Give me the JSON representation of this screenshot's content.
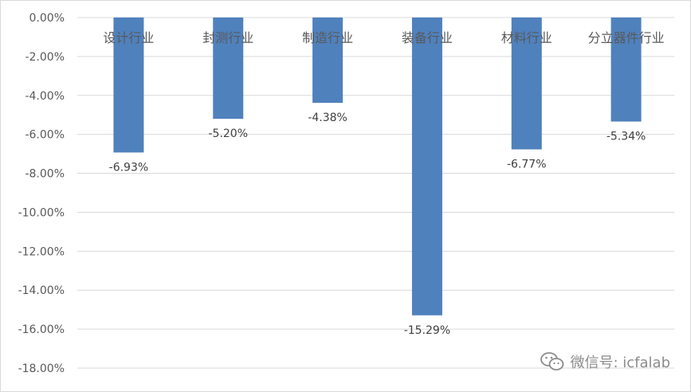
{
  "chart_data": {
    "type": "bar",
    "categories": [
      "设计行业",
      "封测行业",
      "制造行业",
      "装备行业",
      "材料行业",
      "分立器件行业"
    ],
    "values": [
      -6.93,
      -5.2,
      -4.38,
      -15.29,
      -6.77,
      -5.34
    ],
    "data_labels": [
      "-6.93%",
      "-5.20%",
      "-4.38%",
      "-15.29%",
      "-6.77%",
      "-5.34%"
    ],
    "ylim": [
      -18,
      0
    ],
    "yticks": [
      0,
      -2,
      -4,
      -6,
      -8,
      -10,
      -12,
      -14,
      -16,
      -18
    ],
    "ytick_labels": [
      "0.00%",
      "-2.00%",
      "-4.00%",
      "-6.00%",
      "-8.00%",
      "-10.00%",
      "-12.00%",
      "-14.00%",
      "-16.00%",
      "-18.00%"
    ],
    "bar_color": "#4f81bd",
    "grid": true,
    "legend": "none"
  },
  "watermark": {
    "icon": "wechat-icon",
    "text": "微信号: icfalab"
  }
}
